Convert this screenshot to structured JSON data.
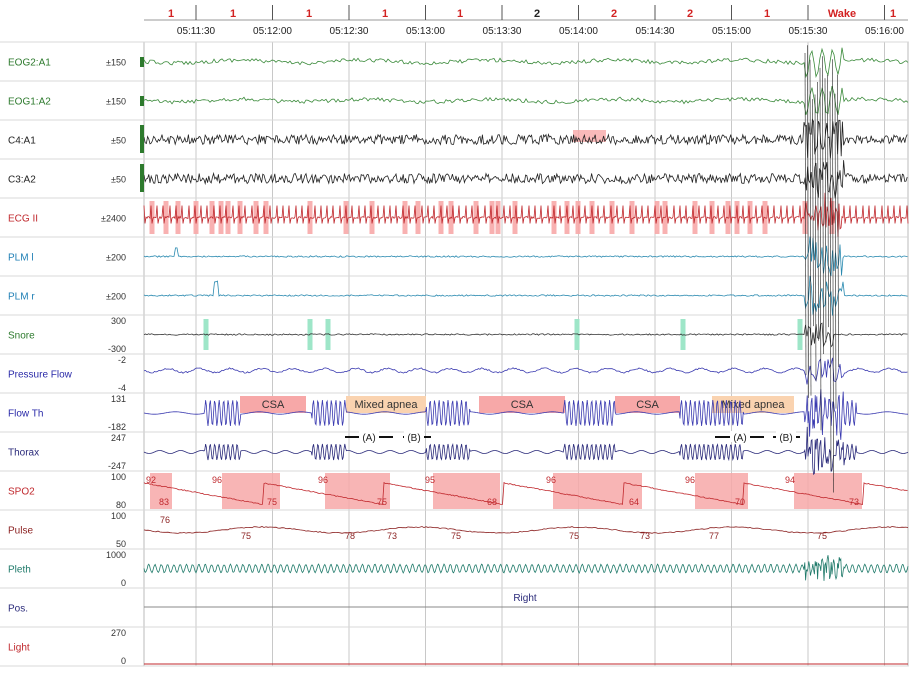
{
  "chart_data": {
    "type": "line",
    "title": "",
    "time_ticks": [
      "05:11:30",
      "05:12:00",
      "05:12:30",
      "05:13:00",
      "05:13:30",
      "05:14:00",
      "05:14:30",
      "05:15:00",
      "05:15:30",
      "05:16:00"
    ],
    "sleep_stages": [
      {
        "label": "1",
        "color": "#d22222"
      },
      {
        "label": "1",
        "color": "#d22222"
      },
      {
        "label": "1",
        "color": "#d22222"
      },
      {
        "label": "1",
        "color": "#d22222"
      },
      {
        "label": "1",
        "color": "#d22222"
      },
      {
        "label": "2",
        "color": "#222222"
      },
      {
        "label": "2",
        "color": "#d22222"
      },
      {
        "label": "2",
        "color": "#d22222"
      },
      {
        "label": "1",
        "color": "#d22222"
      },
      {
        "label": "Wake",
        "color": "#d22222"
      },
      {
        "label": "1",
        "color": "#d22222"
      }
    ],
    "channels": [
      {
        "name": "EOG2:A1",
        "scale": "±150",
        "color": "#2d7a2d",
        "trace": "#3a8a3a"
      },
      {
        "name": "EOG1:A2",
        "scale": "±150",
        "color": "#2d7a2d",
        "trace": "#3a8a3a"
      },
      {
        "name": "C4:A1",
        "scale": "±50",
        "color": "#222222",
        "trace": "#222222"
      },
      {
        "name": "C3:A2",
        "scale": "±50",
        "color": "#222222",
        "trace": "#222222"
      },
      {
        "name": "ECG II",
        "scale": "±2400",
        "color": "#c0282d",
        "trace": "#c0282d"
      },
      {
        "name": "PLM l",
        "scale": "±200",
        "color": "#1f7fb5",
        "trace": "#2a8ab0"
      },
      {
        "name": "PLM r",
        "scale": "±200",
        "color": "#1f7fb5",
        "trace": "#2a8ab0"
      },
      {
        "name": "Snore",
        "scale_top": "300",
        "scale_bottom": "-300",
        "color": "#2d7a2d",
        "trace": "#333333"
      },
      {
        "name": "Pressure Flow",
        "scale_top": "-2",
        "scale_bottom": "-4",
        "color": "#2a2aa8",
        "trace": "#3a3ab0"
      },
      {
        "name": "Flow Th",
        "scale_top": "131",
        "scale_bottom": "-182",
        "color": "#2a2aa8",
        "trace": "#3a3ab0"
      },
      {
        "name": "Thorax",
        "scale_top": "247",
        "scale_bottom": "-247",
        "color": "#2a2a7a",
        "trace": "#2a2a7a"
      },
      {
        "name": "SPO2",
        "scale_top": "100",
        "scale_bottom": "80",
        "color": "#c0282d",
        "trace": "#c0282d"
      },
      {
        "name": "Pulse",
        "scale_top": "100",
        "scale_bottom": "50",
        "color": "#8a1f1f",
        "trace": "#8a1f1f"
      },
      {
        "name": "Pleth",
        "scale_top": "1000",
        "scale_bottom": "0",
        "color": "#1f7a6a",
        "trace": "#1f7a6a"
      },
      {
        "name": "Pos.",
        "color": "#2a2a7a",
        "trace": "#333333"
      },
      {
        "name": "Light",
        "scale_top": "270",
        "scale_bottom": "0",
        "color": "#c0282d",
        "trace": "#c0282d"
      }
    ],
    "respiratory_events": [
      {
        "label": "CSA",
        "type": "CSA"
      },
      {
        "label": "Mixed apnea",
        "type": "mixed"
      },
      {
        "label": "CSA",
        "type": "CSA"
      },
      {
        "label": "CSA",
        "type": "CSA"
      },
      {
        "label": "Mixed apnea",
        "type": "mixed"
      }
    ],
    "ab_markers": [
      "(A)",
      "(B)",
      "(A)",
      "(B)"
    ],
    "spo2_desaturations": [
      {
        "start": 92,
        "nadir": 83
      },
      {
        "start": 96,
        "nadir": 75
      },
      {
        "start": 96,
        "nadir": 75
      },
      {
        "start": 95,
        "nadir": 68
      },
      {
        "start": 96,
        "nadir": 64
      },
      {
        "start": 96,
        "nadir": 70
      },
      {
        "start": 94,
        "nadir": 73
      }
    ],
    "pulse_labels": [
      "76",
      "75",
      "78",
      "73",
      "75",
      "75",
      "73",
      "77",
      "75"
    ],
    "position_label": "Right",
    "colors": {
      "event_fill": "#f7a8a8",
      "mixed_fill": "#fad3b0",
      "snore_marker": "#9ee6c8",
      "grid": "#c8c8c8"
    }
  }
}
